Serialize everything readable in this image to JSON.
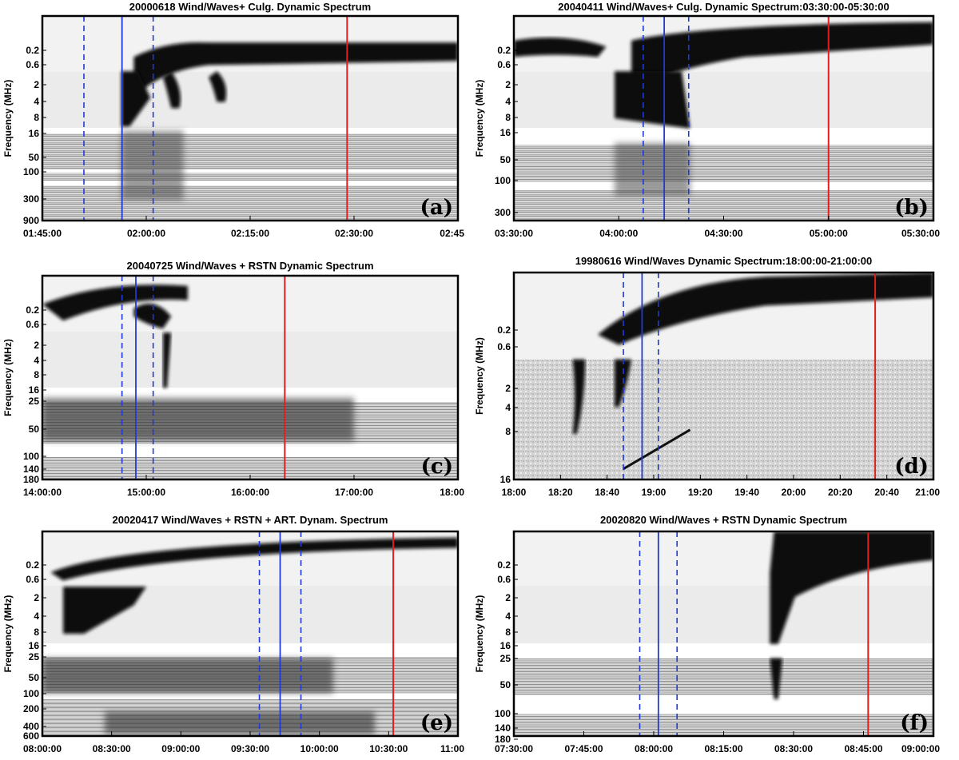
{
  "chart_data": [
    {
      "type": "heatmap",
      "panel_label": "(a)",
      "title": "20000618 Wind/Waves+ Culg. Dynamic Spectrum",
      "ylabel": "Frequency (MHz)",
      "x_ticks": [
        "01:45:00",
        "02:00:00",
        "02:15:00",
        "02:30:00",
        "02:45"
      ],
      "xlim": [
        "01:45:00",
        "02:45:00"
      ],
      "y_ticks": [
        "0.2",
        "0.6",
        "2",
        "4",
        "8",
        "16",
        "50",
        "100",
        "300",
        "900"
      ],
      "markers": {
        "solid_blue": "01:56:30",
        "dashed_blue": [
          "01:51:00",
          "02:01:00"
        ],
        "solid_red": "02:29:00"
      },
      "colormap": "inverted grayscale (dark = intense emission)"
    },
    {
      "type": "heatmap",
      "panel_label": "(b)",
      "title": "20040411 Wind/Waves+ Culg. Dynamic Spectrum:03:30:00-05:30:00",
      "ylabel": "Frequency (MHz)",
      "x_ticks": [
        "03:30:00",
        "04:00:00",
        "04:30:00",
        "05:00:00",
        "05:30:00"
      ],
      "xlim": [
        "03:30:00",
        "05:30:00"
      ],
      "y_ticks": [
        "0.2",
        "0.6",
        "2",
        "4",
        "8",
        "16",
        "50",
        "100",
        "300"
      ],
      "markers": {
        "solid_blue": "04:13:00",
        "dashed_blue": [
          "04:07:00",
          "04:20:00"
        ],
        "solid_red": "05:00:00"
      },
      "colormap": "inverted grayscale (dark = intense emission)"
    },
    {
      "type": "heatmap",
      "panel_label": "(c)",
      "title": "20040725 Wind/Waves + RSTN Dynamic Spectrum",
      "ylabel": "Frequency (MHz)",
      "x_ticks": [
        "14:00:00",
        "15:00:00",
        "16:00:00",
        "17:00:00",
        "18:00"
      ],
      "xlim": [
        "14:00:00",
        "18:00:00"
      ],
      "y_ticks": [
        "0.2",
        "0.6",
        "2",
        "4",
        "8",
        "16",
        "25",
        "50",
        "100",
        "140",
        "180"
      ],
      "markers": {
        "solid_blue": "14:54:00",
        "dashed_blue": [
          "14:46:00",
          "15:04:00"
        ],
        "solid_red": "16:20:00"
      },
      "colormap": "inverted grayscale (dark = intense emission)"
    },
    {
      "type": "heatmap",
      "panel_label": "(d)",
      "title": "19980616 Wind/Waves Dynamic Spectrum:18:00:00-21:00:00",
      "ylabel": "Frequency (MHz)",
      "x_ticks": [
        "18:00",
        "18:20",
        "18:40",
        "19:00",
        "19:20",
        "19:40",
        "20:00",
        "20:20",
        "20:40",
        "21:00"
      ],
      "xlim": [
        "18:00",
        "21:00"
      ],
      "y_ticks": [
        "0.2",
        "0.6",
        "2",
        "4",
        "8",
        "16"
      ],
      "markers": {
        "solid_blue": "18:55",
        "dashed_blue": [
          "18:47",
          "19:02"
        ],
        "solid_red": "20:35"
      },
      "colormap": "inverted grayscale (dark = intense emission)"
    },
    {
      "type": "heatmap",
      "panel_label": "(e)",
      "title": "20020417 Wind/Waves + RSTN + ART. Dynam. Spectrum",
      "ylabel": "Frequency (MHz)",
      "x_ticks": [
        "08:00:00",
        "08:30:00",
        "09:00:00",
        "09:30:00",
        "10:00:00",
        "10:30:00",
        "11:00"
      ],
      "xlim": [
        "08:00:00",
        "11:00:00"
      ],
      "y_ticks": [
        "0.2",
        "0.6",
        "2",
        "4",
        "8",
        "16",
        "25",
        "50",
        "100",
        "200",
        "400",
        "600"
      ],
      "markers": {
        "solid_blue": "09:43:00",
        "dashed_blue": [
          "09:34:00",
          "09:52:00"
        ],
        "solid_red": "10:32:00"
      },
      "colormap": "inverted grayscale (dark = intense emission)"
    },
    {
      "type": "heatmap",
      "panel_label": "(f)",
      "title": "20020820 Wind/Waves + RSTN Dynamic Spectrum",
      "ylabel": "Frequency (MHz)",
      "x_ticks": [
        "07:30:00",
        "07:45:00",
        "08:00:00",
        "08:15:00",
        "08:30:00",
        "08:45:00",
        "09:00:00"
      ],
      "xlim": [
        "07:30:00",
        "09:00:00"
      ],
      "y_ticks": [
        "0.2",
        "0.6",
        "2",
        "4",
        "8",
        "16",
        "25",
        "50",
        "100",
        "140",
        "180"
      ],
      "markers": {
        "solid_blue": "08:01:00",
        "dashed_blue": [
          "07:57:00",
          "08:05:00"
        ],
        "solid_red": "08:46:00"
      },
      "colormap": "inverted grayscale (dark = intense emission)"
    }
  ]
}
